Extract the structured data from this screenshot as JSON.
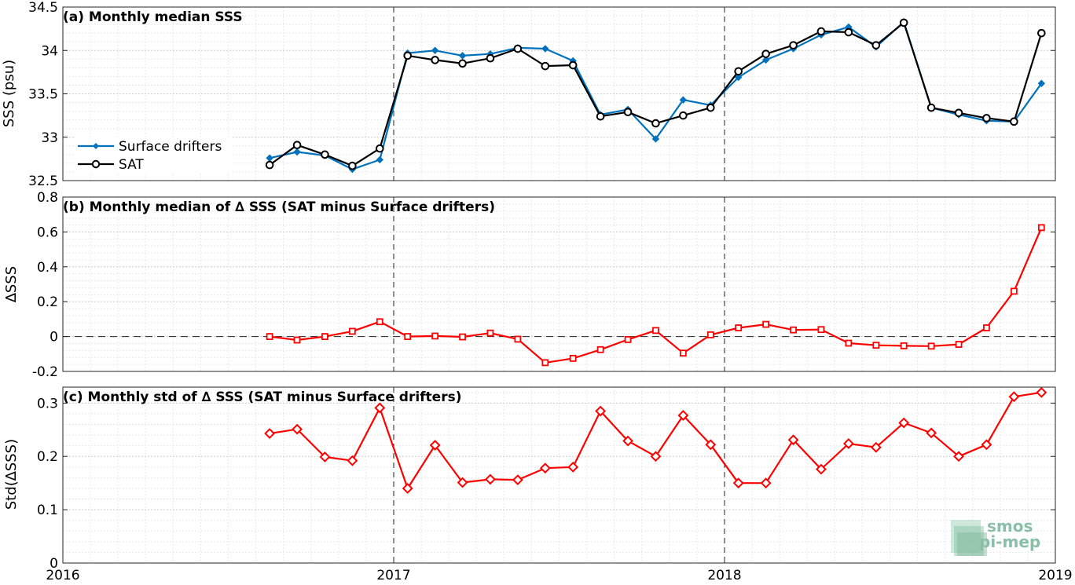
{
  "figure": {
    "logo_line1": "smos",
    "logo_line2": "pi-mep"
  },
  "chart_data": [
    {
      "type": "line",
      "title": "(a) Monthly median SSS",
      "ylabel": "SSS (psu)",
      "xlim": [
        2016,
        2019
      ],
      "ylim": [
        32.5,
        34.5
      ],
      "yticks": [
        32.5,
        33,
        33.5,
        34,
        34.5
      ],
      "ytick_labels": [
        "32.5",
        "33",
        "33.5",
        "34",
        "34.5"
      ],
      "xticks": [
        2016,
        2017,
        2018,
        2019
      ],
      "grid": true,
      "legend_position": "lower-left",
      "x": [
        2016.625,
        2016.708,
        2016.792,
        2016.875,
        2016.958,
        2017.042,
        2017.125,
        2017.208,
        2017.292,
        2017.375,
        2017.458,
        2017.542,
        2017.625,
        2017.708,
        2017.792,
        2017.875,
        2017.958,
        2018.042,
        2018.125,
        2018.208,
        2018.292,
        2018.375,
        2018.458,
        2018.542,
        2018.625,
        2018.708,
        2018.792,
        2018.875,
        2018.958
      ],
      "series": [
        {
          "name": "Surface drifters",
          "color": "#0072bd",
          "marker": "filled-diamond",
          "values": [
            32.76,
            32.83,
            32.79,
            32.63,
            32.74,
            33.97,
            34.0,
            33.94,
            33.96,
            34.03,
            34.02,
            33.88,
            33.26,
            33.32,
            32.98,
            33.43,
            33.37,
            33.69,
            33.89,
            34.02,
            34.18,
            34.27,
            34.04,
            34.33,
            33.34,
            33.26,
            33.19,
            33.18,
            33.62
          ]
        },
        {
          "name": "SAT",
          "color": "#000000",
          "marker": "circle",
          "values": [
            32.68,
            32.91,
            32.8,
            32.67,
            32.87,
            33.94,
            33.89,
            33.85,
            33.91,
            34.02,
            33.82,
            33.83,
            33.24,
            33.29,
            33.16,
            33.25,
            33.34,
            33.76,
            33.96,
            34.06,
            34.22,
            34.21,
            34.06,
            34.32,
            33.34,
            33.28,
            33.22,
            33.18,
            34.2
          ]
        }
      ]
    },
    {
      "type": "line",
      "title": "(b) Monthly median of ∆ SSS (SAT minus Surface drifters)",
      "ylabel": "∆SSS",
      "xlim": [
        2016,
        2019
      ],
      "ylim": [
        -0.2,
        0.8
      ],
      "yticks": [
        -0.2,
        0,
        0.2,
        0.4,
        0.6,
        0.8
      ],
      "ytick_labels": [
        "-0.2",
        "0",
        "0.2",
        "0.4",
        "0.6",
        "0.8"
      ],
      "xticks": [
        2016,
        2017,
        2018,
        2019
      ],
      "grid": true,
      "x": [
        2016.625,
        2016.708,
        2016.792,
        2016.875,
        2016.958,
        2017.042,
        2017.125,
        2017.208,
        2017.292,
        2017.375,
        2017.458,
        2017.542,
        2017.625,
        2017.708,
        2017.792,
        2017.875,
        2017.958,
        2018.042,
        2018.125,
        2018.208,
        2018.292,
        2018.375,
        2018.458,
        2018.542,
        2018.625,
        2018.708,
        2018.792,
        2018.875,
        2018.958
      ],
      "series": [
        {
          "color": "#ff0000",
          "marker": "square",
          "values": [
            0.0,
            -0.02,
            0.0,
            0.03,
            0.085,
            0.0,
            0.003,
            -0.002,
            0.02,
            -0.015,
            -0.15,
            -0.125,
            -0.075,
            -0.017,
            0.035,
            -0.095,
            0.01,
            0.05,
            0.07,
            0.038,
            0.04,
            -0.038,
            -0.05,
            -0.053,
            -0.055,
            -0.045,
            0.05,
            0.26,
            0.625
          ]
        }
      ]
    },
    {
      "type": "line",
      "title": "(c) Monthly std of ∆ SSS (SAT minus Surface drifters)",
      "ylabel": "Std(∆SSS)",
      "xlim": [
        2016,
        2019
      ],
      "ylim": [
        0,
        0.33
      ],
      "yticks": [
        0,
        0.1,
        0.2,
        0.3
      ],
      "ytick_labels": [
        "0",
        "0.1",
        "0.2",
        "0.3"
      ],
      "xticks": [
        2016,
        2017,
        2018,
        2019
      ],
      "xtick_labels": [
        "2016",
        "2017",
        "2018",
        "2019"
      ],
      "grid": true,
      "x": [
        2016.625,
        2016.708,
        2016.792,
        2016.875,
        2016.958,
        2017.042,
        2017.125,
        2017.208,
        2017.292,
        2017.375,
        2017.458,
        2017.542,
        2017.625,
        2017.708,
        2017.792,
        2017.875,
        2017.958,
        2018.042,
        2018.125,
        2018.208,
        2018.292,
        2018.375,
        2018.458,
        2018.542,
        2018.625,
        2018.708,
        2018.792,
        2018.875,
        2018.958
      ],
      "series": [
        {
          "color": "#ff0000",
          "marker": "diamond",
          "values": [
            0.243,
            0.251,
            0.199,
            0.192,
            0.291,
            0.14,
            0.221,
            0.151,
            0.157,
            0.156,
            0.178,
            0.18,
            0.285,
            0.229,
            0.2,
            0.277,
            0.222,
            0.15,
            0.15,
            0.231,
            0.176,
            0.224,
            0.217,
            0.263,
            0.244,
            0.2,
            0.222,
            0.312,
            0.32
          ]
        }
      ]
    }
  ]
}
